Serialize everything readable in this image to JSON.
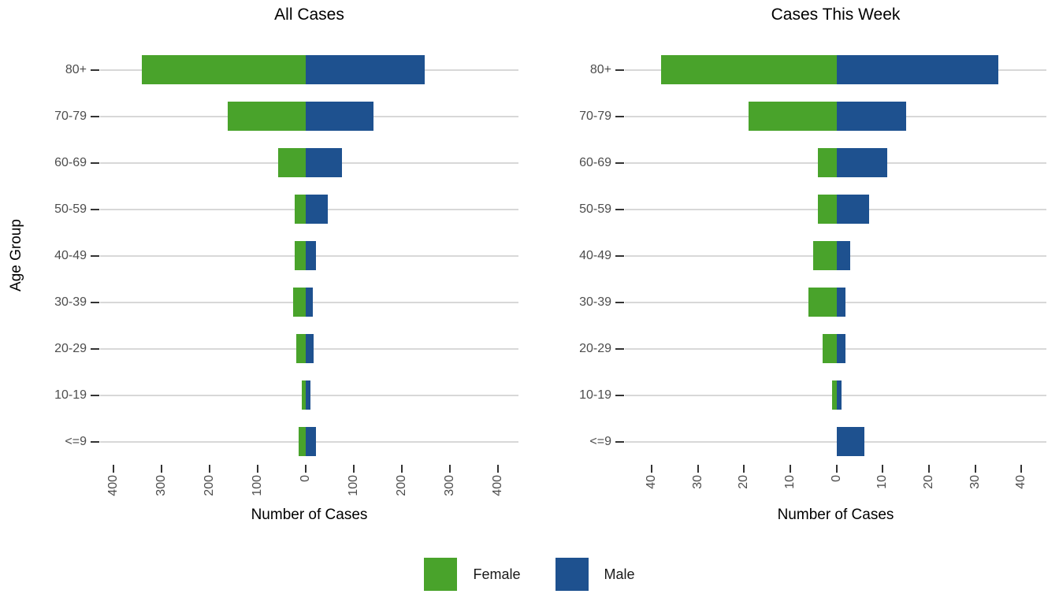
{
  "page": {
    "background": "#ffffff"
  },
  "legend": {
    "position": "bottom",
    "labels": [
      "Female",
      "Male"
    ]
  },
  "chart_data": [
    {
      "type": "bar",
      "variant": "diverging-horizontal-pyramid",
      "title": "All Cases",
      "xlabel": "Number of Cases",
      "ylabel": "Age Group",
      "grid": "horizontal-row-lines",
      "categories": [
        "80+",
        "70-79",
        "60-69",
        "50-59",
        "40-49",
        "30-39",
        "20-29",
        "10-19",
        "<=9"
      ],
      "series": [
        {
          "name": "Female",
          "side": "left",
          "color": "#49a32b",
          "values": [
            341,
            163,
            58,
            24,
            24,
            26,
            20,
            9,
            15
          ]
        },
        {
          "name": "Male",
          "side": "right",
          "color": "#1e518f",
          "values": [
            247,
            140,
            75,
            46,
            21,
            14,
            16,
            9,
            21
          ]
        }
      ],
      "x_ticks": [
        {
          "value": -400,
          "label": "400"
        },
        {
          "value": -300,
          "label": "300"
        },
        {
          "value": -200,
          "label": "200"
        },
        {
          "value": -100,
          "label": "100"
        },
        {
          "value": 0,
          "label": "0"
        },
        {
          "value": 100,
          "label": "100"
        },
        {
          "value": 200,
          "label": "200"
        },
        {
          "value": 300,
          "label": "300"
        },
        {
          "value": 400,
          "label": "400"
        }
      ],
      "xlim": [
        -428,
        442
      ]
    },
    {
      "type": "bar",
      "variant": "diverging-horizontal-pyramid",
      "title": "Cases This Week",
      "xlabel": "Number of Cases",
      "ylabel": "Age Group",
      "grid": "horizontal-row-lines",
      "categories": [
        "80+",
        "70-79",
        "60-69",
        "50-59",
        "40-49",
        "30-39",
        "20-29",
        "10-19",
        "<=9"
      ],
      "series": [
        {
          "name": "Female",
          "side": "left",
          "color": "#49a32b",
          "values": [
            38,
            19,
            4,
            4,
            5,
            6,
            3,
            1,
            0
          ]
        },
        {
          "name": "Male",
          "side": "right",
          "color": "#1e518f",
          "values": [
            35,
            15,
            11,
            7,
            3,
            2,
            2,
            1,
            6
          ]
        }
      ],
      "x_ticks": [
        {
          "value": -40,
          "label": "40"
        },
        {
          "value": -30,
          "label": "30"
        },
        {
          "value": -20,
          "label": "20"
        },
        {
          "value": -10,
          "label": "10"
        },
        {
          "value": 0,
          "label": "0"
        },
        {
          "value": 10,
          "label": "10"
        },
        {
          "value": 20,
          "label": "20"
        },
        {
          "value": 30,
          "label": "30"
        },
        {
          "value": 40,
          "label": "40"
        }
      ],
      "xlim": [
        -45.8,
        45.4
      ]
    }
  ],
  "style": {
    "gridline_color": "#d8d8d8",
    "tick_mark_color": "#333333",
    "tick_label_color": "#4d4d4d",
    "title_color": "#000000"
  }
}
